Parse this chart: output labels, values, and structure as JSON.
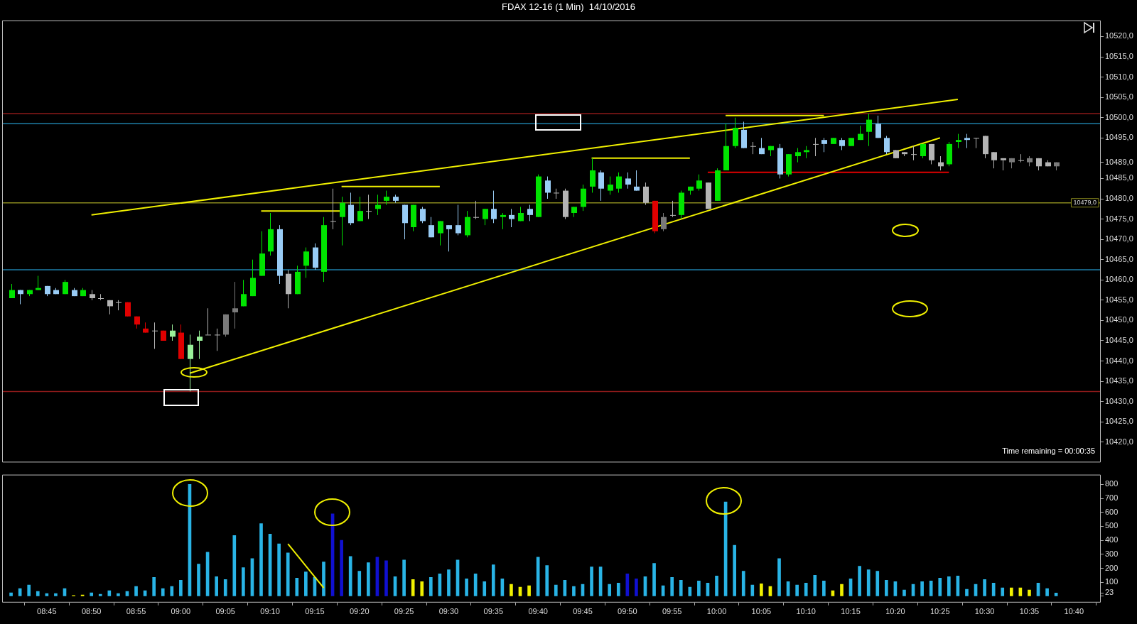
{
  "chart_data": [
    {
      "type": "candlestick",
      "title": "FDAX 12-16 (1 Min)  14/10/2016",
      "x": [
        "2016-10-14T08:41",
        "2016-10-14T08:42",
        "2016-10-14T08:43",
        "2016-10-14T08:44",
        "2016-10-14T08:45",
        "2016-10-14T08:46",
        "2016-10-14T08:47",
        "2016-10-14T08:48",
        "2016-10-14T08:49",
        "2016-10-14T08:50",
        "2016-10-14T08:51",
        "2016-10-14T08:52",
        "2016-10-14T08:53",
        "2016-10-14T08:54",
        "2016-10-14T08:55",
        "2016-10-14T08:56",
        "2016-10-14T08:57",
        "2016-10-14T08:58",
        "2016-10-14T08:59",
        "2016-10-14T09:00",
        "2016-10-14T09:01",
        "2016-10-14T09:02",
        "2016-10-14T09:03",
        "2016-10-14T09:04",
        "2016-10-14T09:05",
        "2016-10-14T09:06",
        "2016-10-14T09:07",
        "2016-10-14T09:08",
        "2016-10-14T09:09",
        "2016-10-14T09:10",
        "2016-10-14T09:11",
        "2016-10-14T09:12",
        "2016-10-14T09:13",
        "2016-10-14T09:14",
        "2016-10-14T09:15",
        "2016-10-14T09:16",
        "2016-10-14T09:17",
        "2016-10-14T09:18",
        "2016-10-14T09:19",
        "2016-10-14T09:20",
        "2016-10-14T09:21",
        "2016-10-14T09:22",
        "2016-10-14T09:23",
        "2016-10-14T09:24",
        "2016-10-14T09:25",
        "2016-10-14T09:26",
        "2016-10-14T09:27",
        "2016-10-14T09:28",
        "2016-10-14T09:29",
        "2016-10-14T09:30",
        "2016-10-14T09:31",
        "2016-10-14T09:32",
        "2016-10-14T09:33",
        "2016-10-14T09:34",
        "2016-10-14T09:35",
        "2016-10-14T09:36",
        "2016-10-14T09:37",
        "2016-10-14T09:38",
        "2016-10-14T09:39",
        "2016-10-14T09:40",
        "2016-10-14T09:41",
        "2016-10-14T09:42",
        "2016-10-14T09:43",
        "2016-10-14T09:44",
        "2016-10-14T09:45",
        "2016-10-14T09:46",
        "2016-10-14T09:47",
        "2016-10-14T09:48",
        "2016-10-14T09:49",
        "2016-10-14T09:50",
        "2016-10-14T09:51",
        "2016-10-14T09:52",
        "2016-10-14T09:53",
        "2016-10-14T09:54",
        "2016-10-14T09:55",
        "2016-10-14T09:56",
        "2016-10-14T09:57",
        "2016-10-14T09:58",
        "2016-10-14T09:59",
        "2016-10-14T10:00",
        "2016-10-14T10:01",
        "2016-10-14T10:02",
        "2016-10-14T10:03",
        "2016-10-14T10:04",
        "2016-10-14T10:05",
        "2016-10-14T10:06",
        "2016-10-14T10:07",
        "2016-10-14T10:08",
        "2016-10-14T10:09",
        "2016-10-14T10:10",
        "2016-10-14T10:11",
        "2016-10-14T10:12",
        "2016-10-14T10:13",
        "2016-10-14T10:14",
        "2016-10-14T10:15",
        "2016-10-14T10:16",
        "2016-10-14T10:17",
        "2016-10-14T10:18",
        "2016-10-14T10:19",
        "2016-10-14T10:20",
        "2016-10-14T10:21",
        "2016-10-14T10:22",
        "2016-10-14T10:23",
        "2016-10-14T10:24",
        "2016-10-14T10:25",
        "2016-10-14T10:26",
        "2016-10-14T10:27",
        "2016-10-14T10:28",
        "2016-10-14T10:29",
        "2016-10-14T10:30",
        "2016-10-14T10:31",
        "2016-10-14T10:32",
        "2016-10-14T10:33",
        "2016-10-14T10:34",
        "2016-10-14T10:35",
        "2016-10-14T10:36",
        "2016-10-14T10:37",
        "2016-10-14T10:38"
      ],
      "ohlc": [
        [
          10455.5,
          10459,
          10455.5,
          10457.5
        ],
        [
          10457.5,
          10457.5,
          10454,
          10456.5
        ],
        [
          10456.5,
          10457.5,
          10456,
          10457.5
        ],
        [
          10457.5,
          10461,
          10457.5,
          10458
        ],
        [
          10458.5,
          10458.5,
          10456,
          10456.5
        ],
        [
          10457.5,
          10458,
          10456.5,
          10456.5
        ],
        [
          10456.5,
          10460,
          10456.5,
          10459.5
        ],
        [
          10457.5,
          10458,
          10456,
          10456
        ],
        [
          10456,
          10458,
          10456,
          10457.5
        ],
        [
          10456.5,
          10457.5,
          10455,
          10455.5
        ],
        [
          10455.5,
          10456.5,
          10455,
          10455.5
        ],
        [
          10455,
          10455,
          10451.5,
          10453.5
        ],
        [
          10454.5,
          10455,
          10452.5,
          10454.5
        ],
        [
          10454.5,
          10454.5,
          10451,
          10451
        ],
        [
          10451,
          10451,
          10448,
          10449
        ],
        [
          10448,
          10449.5,
          10447,
          10447
        ],
        [
          10447.5,
          10449.5,
          10443,
          10447.5
        ],
        [
          10447.5,
          10447.5,
          10445,
          10445
        ],
        [
          10446,
          10449,
          10445,
          10447.5
        ],
        [
          10447,
          10449,
          10440.5,
          10440.5
        ],
        [
          10440.5,
          10446.5,
          10432.5,
          10444
        ],
        [
          10445,
          10447.5,
          10440.5,
          10446
        ],
        [
          10446.5,
          10453,
          10446.5,
          10446.5
        ],
        [
          10446.5,
          10448,
          10442.5,
          10446.5
        ],
        [
          10446.5,
          10451.5,
          10446,
          10451.5
        ],
        [
          10452,
          10459.5,
          10448,
          10453
        ],
        [
          10453.5,
          10460,
          10453.5,
          10456.5
        ],
        [
          10456,
          10465,
          10456,
          10460.5
        ],
        [
          10461,
          10472,
          10461,
          10466.5
        ],
        [
          10467,
          10476.5,
          10466,
          10472.5
        ],
        [
          10472.5,
          10473.5,
          10459,
          10461
        ],
        [
          10461.5,
          10462.5,
          10453,
          10456.5
        ],
        [
          10456.5,
          10463.5,
          10456.5,
          10462
        ],
        [
          10463.5,
          10468,
          10460.5,
          10467
        ],
        [
          10468,
          10469,
          10462.5,
          10463
        ],
        [
          10462,
          10475.5,
          10459.5,
          10473.5
        ],
        [
          10474.5,
          10482.5,
          10472.5,
          10474.5
        ],
        [
          10475.5,
          10480.5,
          10468.5,
          10479
        ],
        [
          10478.5,
          10481.5,
          10473.5,
          10474
        ],
        [
          10474.5,
          10480.5,
          10474.5,
          10477
        ],
        [
          10477,
          10481,
          10475,
          10477
        ],
        [
          10477.5,
          10481,
          10476,
          10478.5
        ],
        [
          10479.5,
          10482,
          10478.5,
          10480.5
        ],
        [
          10480.5,
          10481,
          10479,
          10479.5
        ],
        [
          10478.5,
          10478.5,
          10470,
          10474
        ],
        [
          10473,
          10478.5,
          10472,
          10478.5
        ],
        [
          10477.5,
          10478,
          10474,
          10474.5
        ],
        [
          10473.5,
          10475.5,
          10470.5,
          10470.5
        ],
        [
          10471.5,
          10474.5,
          10468.5,
          10474.5
        ],
        [
          10473.5,
          10473.5,
          10467,
          10472.5
        ],
        [
          10473.5,
          10478.5,
          10471,
          10471.5
        ],
        [
          10471,
          10477,
          10470.5,
          10475.5
        ],
        [
          10475.5,
          10479.5,
          10475,
          10475.5
        ],
        [
          10475,
          10477.5,
          10473.5,
          10477.5
        ],
        [
          10477.5,
          10482,
          10474,
          10475
        ],
        [
          10475.5,
          10476.5,
          10472.5,
          10476
        ],
        [
          10476,
          10477.5,
          10473,
          10475
        ],
        [
          10474.5,
          10478,
          10474.5,
          10476.5
        ],
        [
          10477.5,
          10478.5,
          10474.5,
          10476
        ],
        [
          10475.5,
          10486,
          10475.5,
          10485.5
        ],
        [
          10484.5,
          10485.5,
          10480,
          10481.5
        ],
        [
          10481.5,
          10482.5,
          10480,
          10481.5
        ],
        [
          10482,
          10482.5,
          10475,
          10475.5
        ],
        [
          10476.5,
          10478,
          10475.5,
          10478
        ],
        [
          10478,
          10483.5,
          10477,
          10482.5
        ],
        [
          10483,
          10490,
          10481.5,
          10487
        ],
        [
          10486.5,
          10487,
          10479.5,
          10482.5
        ],
        [
          10482,
          10485.5,
          10481,
          10483.5
        ],
        [
          10482.5,
          10486.5,
          10481.5,
          10485.5
        ],
        [
          10485,
          10486.5,
          10482.5,
          10483.5
        ],
        [
          10483,
          10487,
          10482,
          10482
        ],
        [
          10483,
          10484,
          10478.5,
          10479
        ],
        [
          10479.5,
          10479.5,
          10471.5,
          10472
        ],
        [
          10472.5,
          10476.5,
          10472,
          10475.5
        ],
        [
          10476,
          10479.5,
          10475.5,
          10476
        ],
        [
          10476,
          10482,
          10475,
          10481.5
        ],
        [
          10482,
          10483,
          10481,
          10483
        ],
        [
          10482.5,
          10486,
          10482,
          10484.5
        ],
        [
          10484,
          10484,
          10477.5,
          10477.5
        ],
        [
          10479.5,
          10487.5,
          10479.5,
          10487
        ],
        [
          10487,
          10498.5,
          10487,
          10493
        ],
        [
          10493,
          10500,
          10492.5,
          10497.5
        ],
        [
          10497,
          10499,
          10492.5,
          10492.5
        ],
        [
          10493,
          10494,
          10491,
          10493
        ],
        [
          10492.5,
          10495,
          10491,
          10491
        ],
        [
          10492,
          10493,
          10490.5,
          10493
        ],
        [
          10492.5,
          10493.5,
          10485,
          10486
        ],
        [
          10486,
          10491,
          10485.5,
          10491
        ],
        [
          10490.5,
          10492.5,
          10489,
          10491.5
        ],
        [
          10491.5,
          10493,
          10490,
          10492
        ],
        [
          10493.5,
          10495,
          10490.5,
          10493.5
        ],
        [
          10494.5,
          10495,
          10491.5,
          10493.5
        ],
        [
          10493.5,
          10495,
          10493.5,
          10495
        ],
        [
          10494.5,
          10495,
          10492,
          10493
        ],
        [
          10493,
          10495,
          10493,
          10495
        ],
        [
          10494.5,
          10498,
          10494.5,
          10496
        ],
        [
          10496.5,
          10501,
          10493,
          10499.5
        ],
        [
          10498.5,
          10500.5,
          10495,
          10495
        ],
        [
          10495,
          10495.5,
          10491,
          10491.5
        ],
        [
          10492,
          10492,
          10490,
          10490
        ],
        [
          10491.5,
          10491.5,
          10490.5,
          10491
        ],
        [
          10491,
          10493,
          10489.5,
          10491
        ],
        [
          10490.5,
          10493.5,
          10490,
          10493.5
        ],
        [
          10493.5,
          10493.5,
          10488.5,
          10489.5
        ],
        [
          10489,
          10490.5,
          10487,
          10488
        ],
        [
          10488.5,
          10494,
          10488,
          10493.5
        ],
        [
          10494,
          10496,
          10492.5,
          10494.5
        ],
        [
          10495,
          10496,
          10492.5,
          10494.5
        ],
        [
          10495,
          10495,
          10492.5,
          10495
        ],
        [
          10495.5,
          10495.5,
          10490,
          10491
        ],
        [
          10491.5,
          10491.5,
          10487.5,
          10489.5
        ],
        [
          10490,
          10490,
          10487,
          10489.5
        ],
        [
          10490,
          10490,
          10487.5,
          10489
        ],
        [
          10489.5,
          10491,
          10489,
          10489.5
        ],
        [
          10490,
          10490.5,
          10488,
          10489
        ],
        [
          10490,
          10490,
          10487,
          10488
        ],
        [
          10489,
          10489.5,
          10488,
          10488
        ],
        [
          10488,
          10489,
          10487,
          10489
        ]
      ],
      "colors": [
        "#00e400",
        "#99ccf5",
        "#00e400",
        "#00e400",
        "#99ccf5",
        "#99ccf5",
        "#00e400",
        "#99ccf5",
        "#00e400",
        "#b4b4b4",
        "#b4b4b4",
        "#b4b4b4",
        "#b4b4b4",
        "#e00000",
        "#e00000",
        "#e00000",
        "#b4b4b4",
        "#e00000",
        "#99f099",
        "#e00000",
        "#99f099",
        "#99f099",
        "#b4b4b4",
        "#b4b4b4",
        "#7a7a7a",
        "#7a7a7a",
        "#00e400",
        "#00e400",
        "#00e400",
        "#00e400",
        "#99ccf5",
        "#b4b4b4",
        "#00e400",
        "#00e400",
        "#99ccf5",
        "#00e400",
        "#b4b4b4",
        "#00e400",
        "#99ccf5",
        "#00e400",
        "#b4b4b4",
        "#00e400",
        "#00e400",
        "#99ccf5",
        "#99ccf5",
        "#00e400",
        "#99ccf5",
        "#99ccf5",
        "#00e400",
        "#99ccf5",
        "#99ccf5",
        "#00e400",
        "#b4b4b4",
        "#00e400",
        "#99ccf5",
        "#00e400",
        "#99ccf5",
        "#00e400",
        "#99ccf5",
        "#00e400",
        "#99ccf5",
        "#b4b4b4",
        "#b4b4b4",
        "#00e400",
        "#00e400",
        "#00e400",
        "#99ccf5",
        "#00e400",
        "#00e400",
        "#99ccf5",
        "#99ccf5",
        "#b4b4b4",
        "#e00000",
        "#7a7a7a",
        "#b4b4b4",
        "#00e400",
        "#00e400",
        "#00e400",
        "#b4b4b4",
        "#00e400",
        "#00e400",
        "#00e400",
        "#99ccf5",
        "#b4b4b4",
        "#99ccf5",
        "#00e400",
        "#99ccf5",
        "#00e400",
        "#00e400",
        "#00e400",
        "#b4b4b4",
        "#99ccf5",
        "#00e400",
        "#99ccf5",
        "#00e400",
        "#00e400",
        "#00e400",
        "#99ccf5",
        "#99ccf5",
        "#b4b4b4",
        "#b4b4b4",
        "#b4b4b4",
        "#00e400",
        "#b4b4b4",
        "#b4b4b4",
        "#00e400",
        "#00e400",
        "#99ccf5",
        "#b4b4b4",
        "#b4b4b4",
        "#b4b4b4",
        "#b4b4b4",
        "#7a7a7a",
        "#b4b4b4",
        "#7a7a7a",
        "#b4b4b4",
        "#b4b4b4",
        "#7a7a7a"
      ],
      "series": [
        {
          "type": "line",
          "x": [
            "2016-10-14T08:50",
            "2016-10-14T10:27"
          ],
          "values": [
            10476,
            10504.5
          ],
          "color": "#f0f000"
        },
        {
          "type": "line",
          "x": [
            "2016-10-14T09:01",
            "2016-10-14T10:25"
          ],
          "values": [
            10437,
            10495
          ],
          "color": "#f0f000"
        },
        {
          "type": "line",
          "x": [
            "2016-10-14T09:09",
            "2016-10-14T09:18"
          ],
          "values": [
            10477,
            10477
          ],
          "color": "#f0f000"
        },
        {
          "type": "line",
          "x": [
            "2016-10-14T09:18",
            "2016-10-14T09:29"
          ],
          "values": [
            10483,
            10483
          ],
          "color": "#f0f000"
        },
        {
          "type": "line",
          "x": [
            "2016-10-14T09:46",
            "2016-10-14T09:57"
          ],
          "values": [
            10490,
            10490
          ],
          "color": "#f0f000"
        },
        {
          "type": "line",
          "x": [
            "2016-10-14T10:01",
            "2016-10-14T10:12"
          ],
          "values": [
            10500.5,
            10500.5
          ],
          "color": "#f0f000"
        },
        {
          "type": "line",
          "x": [
            "2016-10-14T09:59",
            "2016-10-14T10:26"
          ],
          "values": [
            10486.5,
            10486.5
          ],
          "color": "#e00000"
        }
      ],
      "ref_lines": [
        {
          "axis": "y",
          "value": 10501,
          "color": "#8b1a1a"
        },
        {
          "axis": "y",
          "value": 10498.5,
          "color": "#1e7ea8"
        },
        {
          "axis": "y",
          "value": 10479,
          "color": "#8a8a1e",
          "label": "10479,0"
        },
        {
          "axis": "y",
          "value": 10462.5,
          "color": "#1e7ea8"
        },
        {
          "axis": "y",
          "value": 10432.5,
          "color": "#8b1a1a"
        }
      ],
      "xlim": [
        "2016-10-14T08:40",
        "2016-10-14T10:43"
      ],
      "ylim": [
        10415,
        10524
      ],
      "yticks": [
        {
          "value": 10420,
          "label": "10420,0"
        },
        {
          "value": 10425,
          "label": "10425,0"
        },
        {
          "value": 10430,
          "label": "10430,0"
        },
        {
          "value": 10435,
          "label": "10435,0"
        },
        {
          "value": 10440,
          "label": "10440,0"
        },
        {
          "value": 10445,
          "label": "10445,0"
        },
        {
          "value": 10450,
          "label": "10450,0"
        },
        {
          "value": 10455,
          "label": "10455,0"
        },
        {
          "value": 10460,
          "label": "10460,0"
        },
        {
          "value": 10465,
          "label": "10465,0"
        },
        {
          "value": 10470,
          "label": "10470,0"
        },
        {
          "value": 10475,
          "label": "10475,0"
        },
        {
          "value": 10480,
          "label": "10480,0"
        },
        {
          "value": 10485,
          "label": "10485,0"
        },
        {
          "value": 10489,
          "label": "10489,0"
        },
        {
          "value": 10495,
          "label": "10495,0"
        },
        {
          "value": 10500,
          "label": "10500,0"
        },
        {
          "value": 10505,
          "label": "10505,0"
        },
        {
          "value": 10510,
          "label": "10510,0"
        },
        {
          "value": 10515,
          "label": "10515,0"
        },
        {
          "value": 10520,
          "label": "10520,0"
        }
      ],
      "tick_labels": "y",
      "annotations": [
        "Time remaining = 00:00:35"
      ]
    },
    {
      "type": "bar",
      "x": [
        "2016-10-14T08:41",
        "2016-10-14T08:42",
        "2016-10-14T08:43",
        "2016-10-14T08:44",
        "2016-10-14T08:45",
        "2016-10-14T08:46",
        "2016-10-14T08:47",
        "2016-10-14T08:48",
        "2016-10-14T08:49",
        "2016-10-14T08:50",
        "2016-10-14T08:51",
        "2016-10-14T08:52",
        "2016-10-14T08:53",
        "2016-10-14T08:54",
        "2016-10-14T08:55",
        "2016-10-14T08:56",
        "2016-10-14T08:57",
        "2016-10-14T08:58",
        "2016-10-14T08:59",
        "2016-10-14T09:00",
        "2016-10-14T09:01",
        "2016-10-14T09:02",
        "2016-10-14T09:03",
        "2016-10-14T09:04",
        "2016-10-14T09:05",
        "2016-10-14T09:06",
        "2016-10-14T09:07",
        "2016-10-14T09:08",
        "2016-10-14T09:09",
        "2016-10-14T09:10",
        "2016-10-14T09:11",
        "2016-10-14T09:12",
        "2016-10-14T09:13",
        "2016-10-14T09:14",
        "2016-10-14T09:15",
        "2016-10-14T09:16",
        "2016-10-14T09:17",
        "2016-10-14T09:18",
        "2016-10-14T09:19",
        "2016-10-14T09:20",
        "2016-10-14T09:21",
        "2016-10-14T09:22",
        "2016-10-14T09:23",
        "2016-10-14T09:24",
        "2016-10-14T09:25",
        "2016-10-14T09:26",
        "2016-10-14T09:27",
        "2016-10-14T09:28",
        "2016-10-14T09:29",
        "2016-10-14T09:30",
        "2016-10-14T09:31",
        "2016-10-14T09:32",
        "2016-10-14T09:33",
        "2016-10-14T09:34",
        "2016-10-14T09:35",
        "2016-10-14T09:36",
        "2016-10-14T09:37",
        "2016-10-14T09:38",
        "2016-10-14T09:39",
        "2016-10-14T09:40",
        "2016-10-14T09:41",
        "2016-10-14T09:42",
        "2016-10-14T09:43",
        "2016-10-14T09:44",
        "2016-10-14T09:45",
        "2016-10-14T09:46",
        "2016-10-14T09:47",
        "2016-10-14T09:48",
        "2016-10-14T09:49",
        "2016-10-14T09:50",
        "2016-10-14T09:51",
        "2016-10-14T09:52",
        "2016-10-14T09:53",
        "2016-10-14T09:54",
        "2016-10-14T09:55",
        "2016-10-14T09:56",
        "2016-10-14T09:57",
        "2016-10-14T09:58",
        "2016-10-14T09:59",
        "2016-10-14T10:00",
        "2016-10-14T10:01",
        "2016-10-14T10:02",
        "2016-10-14T10:03",
        "2016-10-14T10:04",
        "2016-10-14T10:05",
        "2016-10-14T10:06",
        "2016-10-14T10:07",
        "2016-10-14T10:08",
        "2016-10-14T10:09",
        "2016-10-14T10:10",
        "2016-10-14T10:11",
        "2016-10-14T10:12",
        "2016-10-14T10:13",
        "2016-10-14T10:14",
        "2016-10-14T10:15",
        "2016-10-14T10:16",
        "2016-10-14T10:17",
        "2016-10-14T10:18",
        "2016-10-14T10:19",
        "2016-10-14T10:20",
        "2016-10-14T10:21",
        "2016-10-14T10:22",
        "2016-10-14T10:23",
        "2016-10-14T10:24",
        "2016-10-14T10:25",
        "2016-10-14T10:26",
        "2016-10-14T10:27",
        "2016-10-14T10:28",
        "2016-10-14T10:29",
        "2016-10-14T10:30",
        "2016-10-14T10:31",
        "2016-10-14T10:32",
        "2016-10-14T10:33",
        "2016-10-14T10:34",
        "2016-10-14T10:35",
        "2016-10-14T10:36",
        "2016-10-14T10:37",
        "2016-10-14T10:38"
      ],
      "values": [
        25,
        55,
        80,
        35,
        20,
        20,
        55,
        5,
        10,
        25,
        15,
        40,
        20,
        35,
        70,
        40,
        135,
        55,
        70,
        115,
        800,
        230,
        315,
        140,
        120,
        435,
        205,
        270,
        520,
        445,
        375,
        310,
        130,
        175,
        135,
        245,
        590,
        400,
        285,
        180,
        240,
        280,
        255,
        140,
        260,
        120,
        105,
        135,
        160,
        190,
        260,
        125,
        160,
        105,
        225,
        125,
        85,
        65,
        75,
        280,
        220,
        80,
        115,
        70,
        85,
        210,
        210,
        85,
        95,
        160,
        125,
        140,
        235,
        75,
        135,
        115,
        65,
        110,
        95,
        145,
        675,
        365,
        180,
        80,
        90,
        70,
        270,
        105,
        80,
        95,
        150,
        110,
        40,
        85,
        125,
        215,
        190,
        180,
        115,
        105,
        45,
        85,
        105,
        110,
        130,
        140,
        145,
        50,
        85,
        120,
        95,
        60,
        60,
        60,
        45,
        95,
        55,
        23
      ],
      "colors": [
        "#29b4e6",
        "#29b4e6",
        "#29b4e6",
        "#29b4e6",
        "#29b4e6",
        "#29b4e6",
        "#29b4e6",
        "#f0f000",
        "#f0f000",
        "#29b4e6",
        "#29b4e6",
        "#29b4e6",
        "#29b4e6",
        "#29b4e6",
        "#29b4e6",
        "#29b4e6",
        "#29b4e6",
        "#29b4e6",
        "#29b4e6",
        "#29b4e6",
        "#29b4e6",
        "#29b4e6",
        "#29b4e6",
        "#29b4e6",
        "#29b4e6",
        "#29b4e6",
        "#29b4e6",
        "#29b4e6",
        "#29b4e6",
        "#29b4e6",
        "#29b4e6",
        "#29b4e6",
        "#29b4e6",
        "#29b4e6",
        "#29b4e6",
        "#29b4e6",
        "#1010d0",
        "#1010d0",
        "#29b4e6",
        "#29b4e6",
        "#29b4e6",
        "#1010d0",
        "#1010d0",
        "#29b4e6",
        "#29b4e6",
        "#f0f000",
        "#f0f000",
        "#29b4e6",
        "#29b4e6",
        "#29b4e6",
        "#29b4e6",
        "#29b4e6",
        "#29b4e6",
        "#29b4e6",
        "#29b4e6",
        "#29b4e6",
        "#f0f000",
        "#f0f000",
        "#f0f000",
        "#29b4e6",
        "#29b4e6",
        "#29b4e6",
        "#29b4e6",
        "#29b4e6",
        "#29b4e6",
        "#29b4e6",
        "#29b4e6",
        "#29b4e6",
        "#29b4e6",
        "#1010d0",
        "#1010d0",
        "#29b4e6",
        "#29b4e6",
        "#29b4e6",
        "#29b4e6",
        "#29b4e6",
        "#29b4e6",
        "#29b4e6",
        "#29b4e6",
        "#29b4e6",
        "#29b4e6",
        "#29b4e6",
        "#29b4e6",
        "#29b4e6",
        "#f0f000",
        "#f0f000",
        "#29b4e6",
        "#29b4e6",
        "#29b4e6",
        "#29b4e6",
        "#29b4e6",
        "#29b4e6",
        "#f0f000",
        "#f0f000",
        "#29b4e6",
        "#29b4e6",
        "#29b4e6",
        "#29b4e6",
        "#29b4e6",
        "#29b4e6",
        "#29b4e6",
        "#29b4e6",
        "#29b4e6",
        "#29b4e6",
        "#29b4e6",
        "#29b4e6",
        "#29b4e6",
        "#29b4e6",
        "#29b4e6",
        "#29b4e6",
        "#29b4e6",
        "#29b4e6",
        "#f0f000",
        "#f0f000",
        "#f0f000",
        "#29b4e6",
        "#29b4e6",
        "#29b4e6"
      ],
      "series": [
        {
          "type": "line",
          "x": [
            "2016-10-14T09:12",
            "2016-10-14T09:16"
          ],
          "values": [
            375,
            60
          ],
          "color": "#f0f000"
        }
      ],
      "xlim": [
        "2016-10-14T08:40",
        "2016-10-14T10:43"
      ],
      "xticks": [
        {
          "value": "2016-10-14T08:45",
          "label": "08:45"
        },
        {
          "value": "2016-10-14T08:50",
          "label": "08:50"
        },
        {
          "value": "2016-10-14T08:55",
          "label": "08:55"
        },
        {
          "value": "2016-10-14T09:00",
          "label": "09:00"
        },
        {
          "value": "2016-10-14T09:05",
          "label": "09:05"
        },
        {
          "value": "2016-10-14T09:10",
          "label": "09:10"
        },
        {
          "value": "2016-10-14T09:15",
          "label": "09:15"
        },
        {
          "value": "2016-10-14T09:20",
          "label": "09:20"
        },
        {
          "value": "2016-10-14T09:25",
          "label": "09:25"
        },
        {
          "value": "2016-10-14T09:30",
          "label": "09:30"
        },
        {
          "value": "2016-10-14T09:35",
          "label": "09:35"
        },
        {
          "value": "2016-10-14T09:40",
          "label": "09:40"
        },
        {
          "value": "2016-10-14T09:45",
          "label": "09:45"
        },
        {
          "value": "2016-10-14T09:50",
          "label": "09:50"
        },
        {
          "value": "2016-10-14T09:55",
          "label": "09:55"
        },
        {
          "value": "2016-10-14T10:00",
          "label": "10:00"
        },
        {
          "value": "2016-10-14T10:05",
          "label": "10:05"
        },
        {
          "value": "2016-10-14T10:10",
          "label": "10:10"
        },
        {
          "value": "2016-10-14T10:15",
          "label": "10:15"
        },
        {
          "value": "2016-10-14T10:20",
          "label": "10:20"
        },
        {
          "value": "2016-10-14T10:25",
          "label": "10:25"
        },
        {
          "value": "2016-10-14T10:30",
          "label": "10:30"
        },
        {
          "value": "2016-10-14T10:35",
          "label": "10:35"
        },
        {
          "value": "2016-10-14T10:40",
          "label": "10:40"
        }
      ],
      "ylim": [
        -45,
        870
      ],
      "yticks": [
        {
          "value": 0,
          "label": null
        },
        {
          "value": 23,
          "label": "23"
        },
        100,
        200,
        300,
        400,
        500,
        600,
        700,
        800
      ]
    }
  ]
}
